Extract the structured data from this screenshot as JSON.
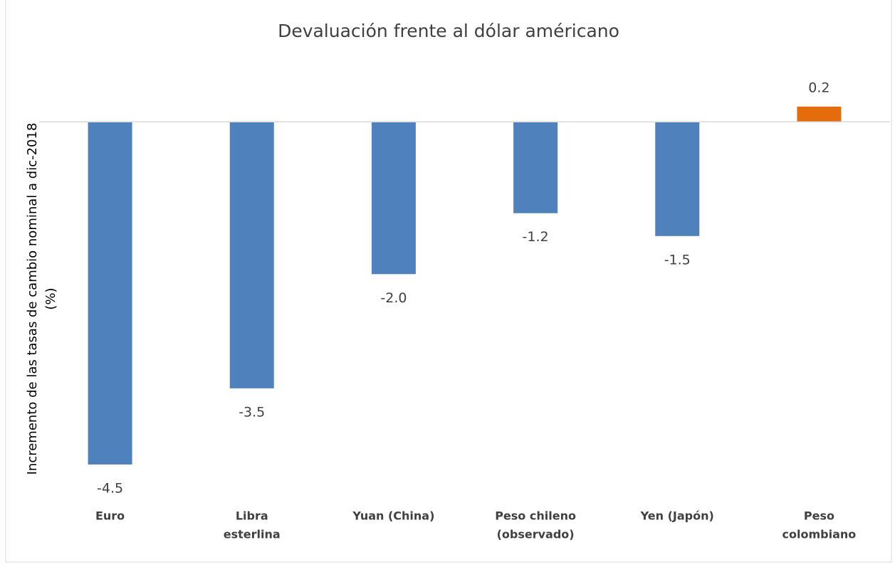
{
  "chart_data": {
    "type": "bar",
    "title": "Devaluación frente al dólar américano",
    "ylabel": [
      "Incremento de las tasas de cambio nominal a dic-2018",
      "(%)"
    ],
    "categories": [
      [
        "Euro"
      ],
      [
        "Libra",
        "esterlina"
      ],
      [
        "Yuan (China)"
      ],
      [
        "Peso chileno",
        "(observado)"
      ],
      [
        "Yen (Japón)"
      ],
      [
        "Peso",
        "colombiano"
      ]
    ],
    "values": [
      -4.5,
      -3.5,
      -2.0,
      -1.2,
      -1.5,
      0.2
    ],
    "value_labels": [
      "-4.5",
      "-3.5",
      "-2.0",
      "-1.2",
      "-1.5",
      "0.2"
    ],
    "colors": [
      "#4f81bd",
      "#4f81bd",
      "#4f81bd",
      "#4f81bd",
      "#4f81bd",
      "#e46c0a"
    ],
    "ylim": [
      -4.8,
      0.6
    ]
  }
}
